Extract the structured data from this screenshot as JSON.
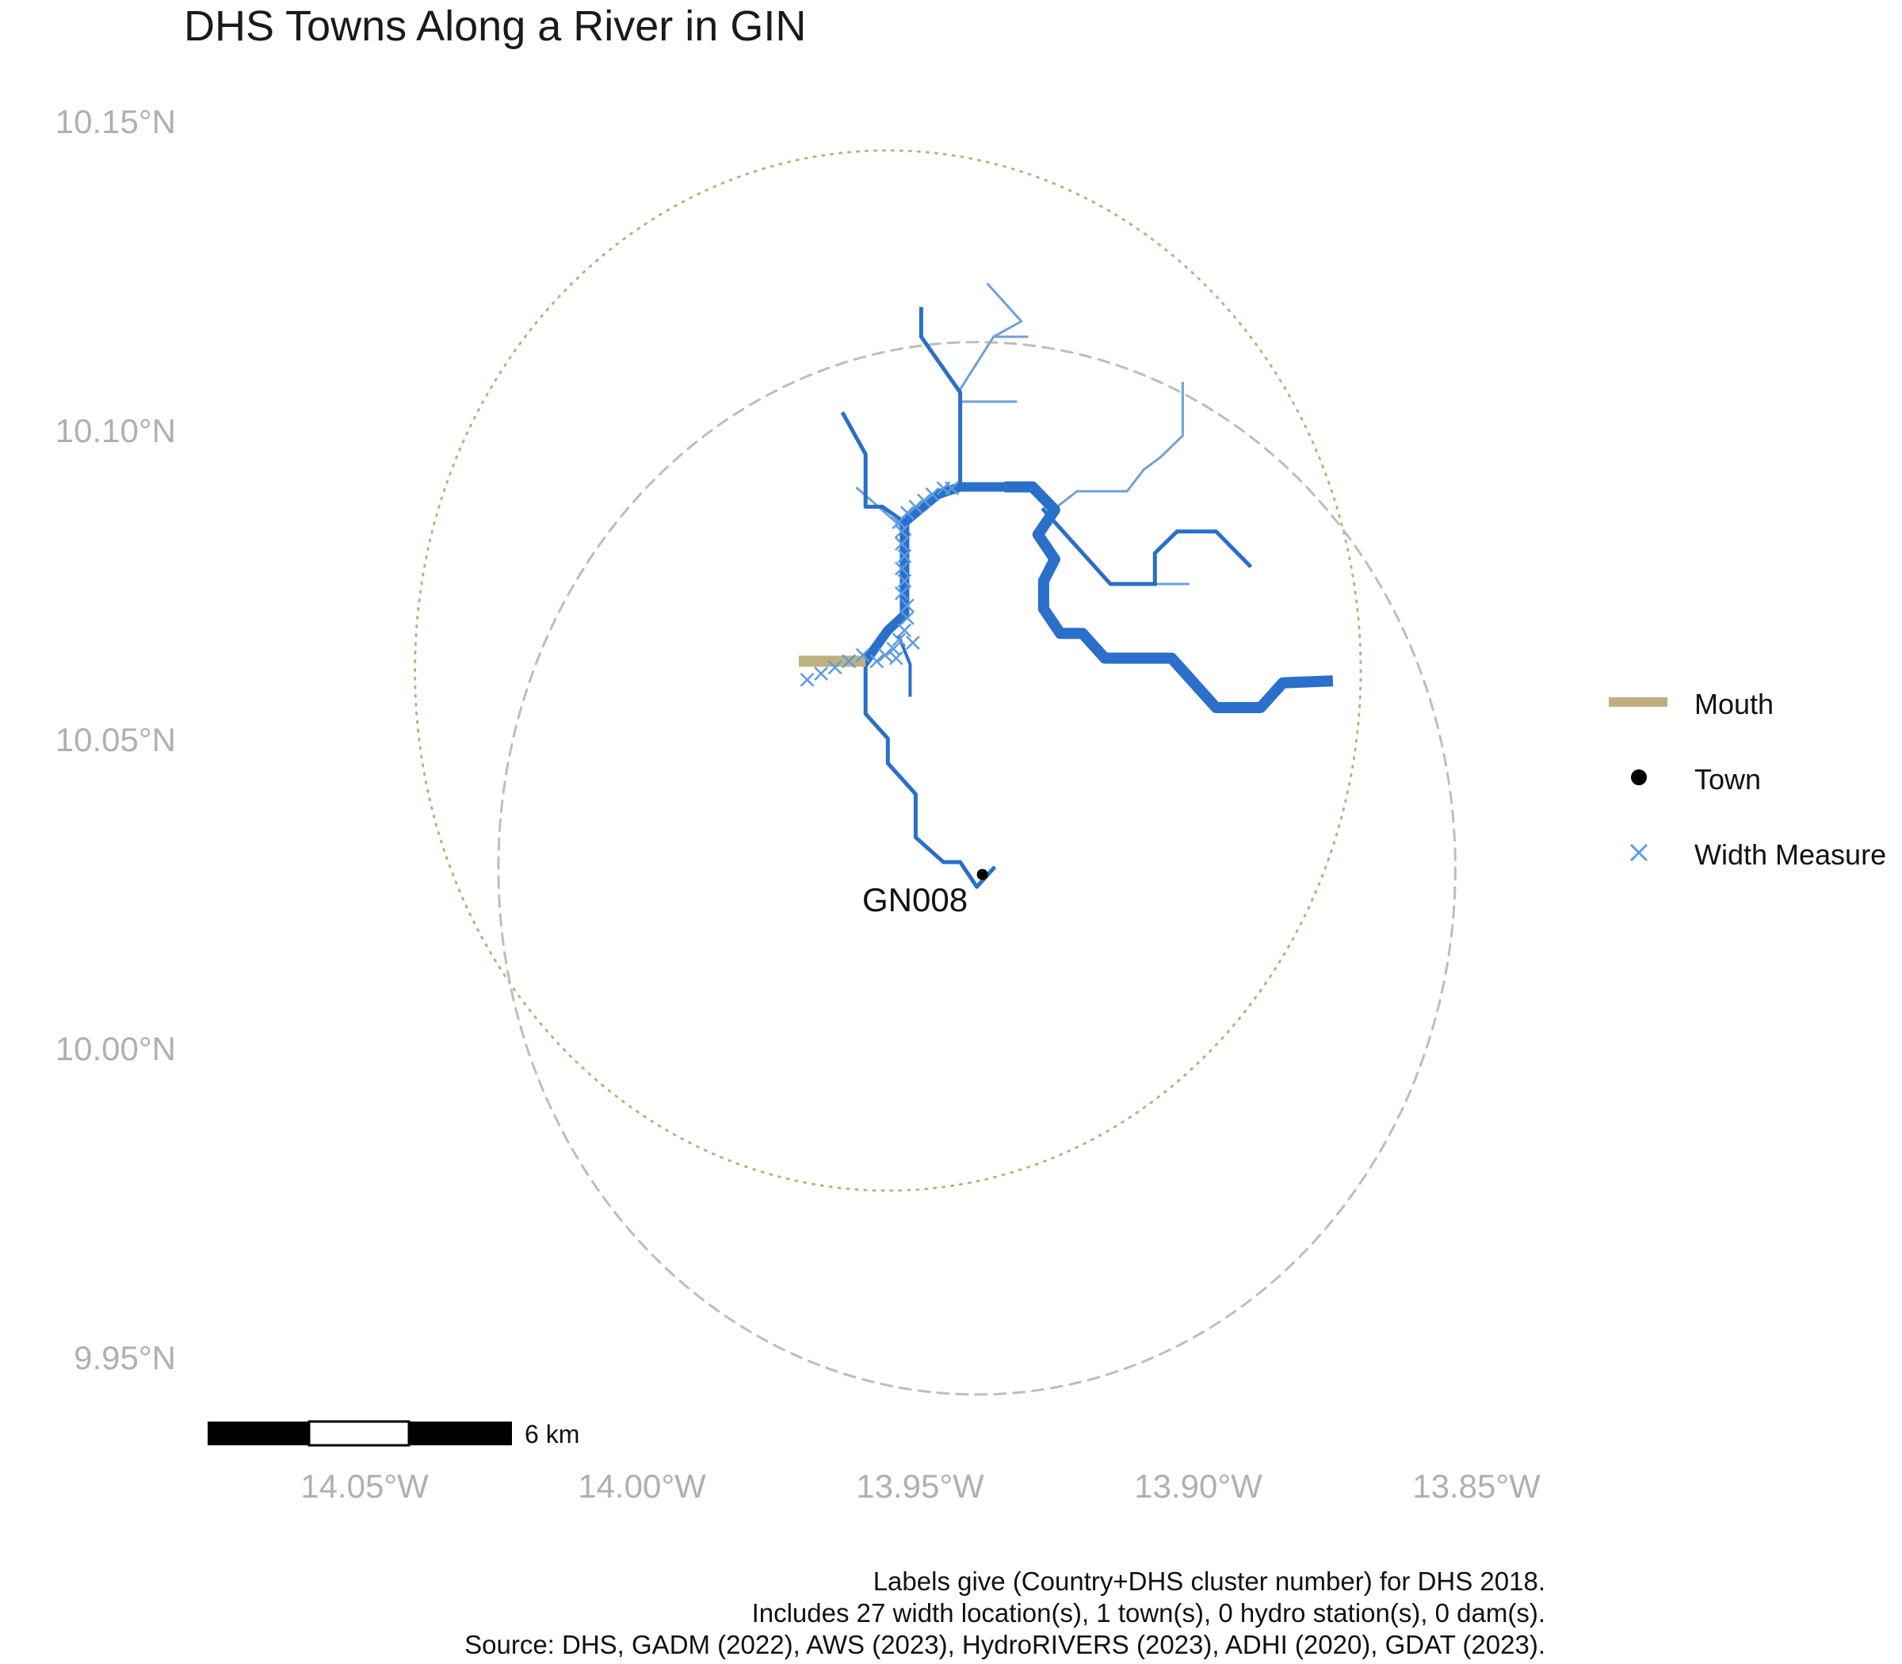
{
  "title": "DHS Towns Along a River in GIN",
  "axes": {
    "y_ticks": [
      "10.15°N",
      "10.10°N",
      "10.05°N",
      "10.00°N",
      "9.95°N"
    ],
    "x_ticks": [
      "14.05°W",
      "14.00°W",
      "13.95°W",
      "13.90°W",
      "13.85°W"
    ]
  },
  "legend": {
    "items": [
      {
        "label": "Mouth",
        "color": "#BEB07E",
        "icon": "thick-line"
      },
      {
        "label": "Town",
        "color": "#000000",
        "icon": "filled-dot"
      },
      {
        "label": "Width Measure",
        "color": "#5B9BE0",
        "icon": "cross-mark"
      }
    ]
  },
  "scale_bar": {
    "label": "6 km"
  },
  "towns": [
    {
      "label": "GN008",
      "lon": -13.943,
      "lat": 10.028
    }
  ],
  "caption": {
    "lines": [
      "Labels give (Country+DHS cluster number) for DHS 2018.",
      "Includes 27 width location(s), 1 town(s), 0 hydro station(s), 0 dam(s).",
      "Source: DHS, GADM (2022), AWS (2023), HydroRIVERS (2023), ADHI (2020), GDAT (2023)."
    ]
  },
  "colors": {
    "river": "#2A6FC9",
    "river_light": "#6FA0D8",
    "mouth": "#BEB07E",
    "width_marker": "#5B9BE0",
    "circle_dashed": "#BDBDBD",
    "circle_dotted": "#BEB07E",
    "tick_text": "#B0B0B0"
  },
  "map_data": {
    "lon_range": [
      -14.08,
      -13.84
    ],
    "lat_range": [
      9.94,
      10.16
    ],
    "circles": [
      {
        "style": "dotted",
        "center_lon": -13.96,
        "center_lat": 10.061,
        "radius_deg": 0.085
      },
      {
        "style": "dashed",
        "center_lon": -13.944,
        "center_lat": 10.029,
        "radius_deg": 0.086
      }
    ],
    "mouth": [
      [
        -13.976,
        10.0625
      ],
      [
        -13.964,
        10.0625
      ]
    ],
    "rivers": [
      {
        "width": 14,
        "shade": "dark",
        "coords": [
          [
            -13.938,
            10.0907
          ],
          [
            -13.934,
            10.0907
          ],
          [
            -13.93,
            10.087
          ],
          [
            -13.933,
            10.083
          ],
          [
            -13.93,
            10.079
          ],
          [
            -13.932,
            10.0755
          ],
          [
            -13.932,
            10.071
          ],
          [
            -13.929,
            10.067
          ],
          [
            -13.925,
            10.067
          ],
          [
            -13.921,
            10.063
          ],
          [
            -13.909,
            10.063
          ],
          [
            -13.905,
            10.059
          ],
          [
            -13.901,
            10.055
          ],
          [
            -13.893,
            10.055
          ],
          [
            -13.889,
            10.059
          ],
          [
            -13.881,
            10.0593
          ]
        ]
      },
      {
        "width": 12,
        "shade": "dark",
        "coords": [
          [
            -13.964,
            10.0625
          ],
          [
            -13.96,
            10.0675
          ],
          [
            -13.957,
            10.07
          ],
          [
            -13.957,
            10.085
          ],
          [
            -13.951,
            10.0895
          ],
          [
            -13.947,
            10.0907
          ],
          [
            -13.938,
            10.0907
          ]
        ]
      },
      {
        "width": 5,
        "shade": "dark",
        "coords": [
          [
            -13.964,
            10.0625
          ],
          [
            -13.964,
            10.054
          ],
          [
            -13.96,
            10.05
          ],
          [
            -13.96,
            10.046
          ],
          [
            -13.955,
            10.041
          ],
          [
            -13.955,
            10.034
          ],
          [
            -13.95,
            10.03
          ],
          [
            -13.947,
            10.03
          ],
          [
            -13.944,
            10.026
          ],
          [
            -13.941,
            10.029
          ]
        ]
      },
      {
        "width": 5,
        "shade": "dark",
        "coords": [
          [
            -13.957,
            10.085
          ],
          [
            -13.961,
            10.0875
          ],
          [
            -13.964,
            10.0875
          ],
          [
            -13.964,
            10.096
          ],
          [
            -13.968,
            10.1025
          ]
        ]
      },
      {
        "width": 5,
        "shade": "dark",
        "coords": [
          [
            -13.947,
            10.0907
          ],
          [
            -13.947,
            10.106
          ],
          [
            -13.954,
            10.115
          ],
          [
            -13.954,
            10.1195
          ]
        ]
      },
      {
        "width": 5,
        "shade": "dark",
        "coords": [
          [
            -13.932,
            10.087
          ],
          [
            -13.92,
            10.075
          ],
          [
            -13.912,
            10.075
          ]
        ]
      },
      {
        "width": 5,
        "shade": "dark",
        "coords": [
          [
            -13.912,
            10.075
          ],
          [
            -13.912,
            10.08
          ],
          [
            -13.908,
            10.0835
          ],
          [
            -13.901,
            10.0835
          ],
          [
            -13.895,
            10.078
          ]
        ]
      },
      {
        "width": 4,
        "shade": "dark",
        "coords": [
          [
            -13.958,
            10.0665
          ],
          [
            -13.956,
            10.062
          ],
          [
            -13.956,
            10.057
          ]
        ]
      },
      {
        "width": 3,
        "shade": "light",
        "coords": [
          [
            -13.9655,
            10.0905
          ],
          [
            -13.956,
            10.083
          ]
        ]
      },
      {
        "width": 3,
        "shade": "light",
        "coords": [
          [
            -13.947,
            10.1065
          ],
          [
            -13.941,
            10.115
          ],
          [
            -13.936,
            10.1175
          ],
          [
            -13.942,
            10.1235
          ]
        ]
      },
      {
        "width": 3,
        "shade": "light",
        "coords": [
          [
            -13.941,
            10.115
          ],
          [
            -13.935,
            10.115
          ]
        ]
      },
      {
        "width": 3,
        "shade": "light",
        "coords": [
          [
            -13.947,
            10.1045
          ],
          [
            -13.937,
            10.1045
          ]
        ]
      },
      {
        "width": 3,
        "shade": "light",
        "coords": [
          [
            -13.931,
            10.0865
          ],
          [
            -13.926,
            10.09
          ],
          [
            -13.917,
            10.09
          ],
          [
            -13.914,
            10.0935
          ],
          [
            -13.911,
            10.0955
          ],
          [
            -13.907,
            10.099
          ],
          [
            -13.907,
            10.1075
          ]
        ]
      },
      {
        "width": 3,
        "shade": "light",
        "coords": [
          [
            -13.912,
            10.075
          ],
          [
            -13.906,
            10.075
          ]
        ]
      }
    ],
    "width_measures": [
      [
        -13.9745,
        10.0595
      ],
      [
        -13.972,
        10.0605
      ],
      [
        -13.9695,
        10.0615
      ],
      [
        -13.967,
        10.0625
      ],
      [
        -13.9645,
        10.0635
      ],
      [
        -13.962,
        10.0625
      ],
      [
        -13.9605,
        10.0635
      ],
      [
        -13.959,
        10.0645
      ],
      [
        -13.958,
        10.066
      ],
      [
        -13.957,
        10.0675
      ],
      [
        -13.9565,
        10.0695
      ],
      [
        -13.9565,
        10.0715
      ],
      [
        -13.9575,
        10.0735
      ],
      [
        -13.957,
        10.0755
      ],
      [
        -13.9575,
        10.0775
      ],
      [
        -13.957,
        10.0795
      ],
      [
        -13.9575,
        10.0815
      ],
      [
        -13.9575,
        10.0835
      ],
      [
        -13.958,
        10.085
      ],
      [
        -13.9565,
        10.0865
      ],
      [
        -13.955,
        10.0875
      ],
      [
        -13.9535,
        10.0885
      ],
      [
        -13.952,
        10.0895
      ],
      [
        -13.95,
        10.0905
      ],
      [
        -13.9485,
        10.0905
      ],
      [
        -13.9555,
        10.0655
      ],
      [
        -13.9585,
        10.063
      ]
    ]
  }
}
